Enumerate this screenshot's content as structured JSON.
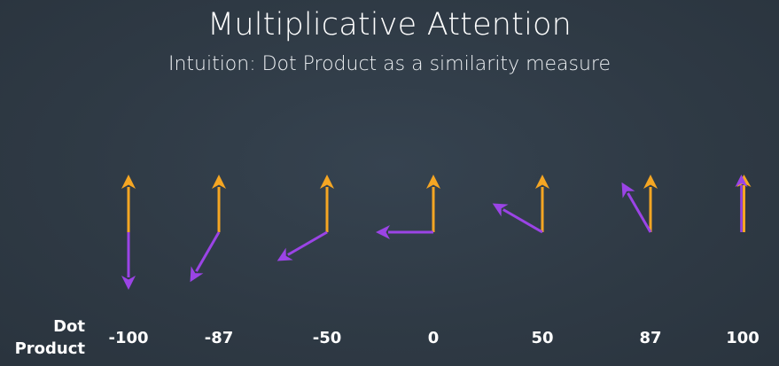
{
  "header": {
    "title": "Multiplicative Attention",
    "subtitle": "Intuition: Dot Product as a similarity measure"
  },
  "row_label": {
    "line1": "Dot",
    "line2": "Product"
  },
  "colors": {
    "background": "#2f3a45",
    "reference_vector": "#f5a623",
    "compared_vector": "#9b44e6",
    "text": "#ffffff"
  },
  "pairs": [
    {
      "value": "-100",
      "angle_deg": 180
    },
    {
      "value": "-87",
      "angle_deg": 150
    },
    {
      "value": "-50",
      "angle_deg": 120
    },
    {
      "value": "0",
      "angle_deg": 90
    },
    {
      "value": "50",
      "angle_deg": 60
    },
    {
      "value": "87",
      "angle_deg": 30
    },
    {
      "value": "100",
      "angle_deg": 0
    }
  ]
}
